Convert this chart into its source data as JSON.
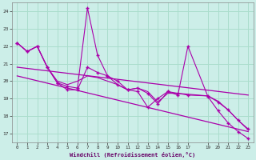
{
  "xlabel": "Windchill (Refroidissement éolien,°C)",
  "background_color": "#cceee8",
  "grid_color": "#aaddcc",
  "line_color": "#aa00aa",
  "xlim": [
    -0.5,
    23.5
  ],
  "ylim": [
    16.5,
    24.5
  ],
  "yticks": [
    17,
    18,
    19,
    20,
    21,
    22,
    23,
    24
  ],
  "xticks": [
    0,
    1,
    2,
    3,
    4,
    5,
    6,
    7,
    8,
    9,
    10,
    11,
    12,
    13,
    14,
    15,
    16,
    17,
    19,
    20,
    21,
    22,
    23
  ],
  "series1_x": [
    0,
    1,
    2,
    3,
    4,
    5,
    6,
    7,
    8,
    9,
    10,
    11,
    12,
    13,
    14,
    15,
    16,
    17,
    19,
    20,
    21,
    22,
    23
  ],
  "series1_y": [
    22.2,
    21.7,
    22.0,
    20.8,
    19.9,
    19.7,
    19.6,
    24.2,
    21.5,
    20.3,
    20.0,
    19.5,
    19.6,
    19.3,
    18.7,
    19.4,
    19.3,
    19.2,
    19.15,
    18.8,
    18.35,
    17.75,
    17.25
  ],
  "series2_x": [
    0,
    1,
    2,
    3,
    4,
    5,
    6,
    7,
    8,
    9,
    10,
    11,
    12,
    13,
    14,
    15,
    16,
    17,
    19,
    20,
    21,
    22,
    23
  ],
  "series2_y": [
    22.2,
    21.7,
    22.0,
    20.8,
    20.0,
    19.8,
    20.0,
    20.3,
    20.2,
    20.0,
    19.8,
    19.5,
    19.6,
    19.4,
    18.8,
    19.3,
    19.3,
    19.25,
    19.15,
    18.85,
    18.35,
    17.75,
    17.2
  ],
  "main_x": [
    0,
    1,
    2,
    3,
    4,
    5,
    6,
    7,
    8,
    9,
    10,
    11,
    12,
    13,
    14,
    15,
    16,
    17,
    19,
    20,
    21,
    22,
    23
  ],
  "main_y": [
    22.2,
    21.7,
    22.0,
    20.8,
    19.9,
    19.5,
    19.5,
    20.8,
    20.5,
    20.3,
    19.8,
    19.5,
    19.4,
    18.5,
    19.0,
    19.4,
    19.2,
    22.0,
    19.1,
    18.3,
    17.6,
    17.1,
    16.7
  ],
  "trend1_x": [
    0,
    23
  ],
  "trend1_y": [
    20.8,
    19.2
  ],
  "trend2_x": [
    0,
    23
  ],
  "trend2_y": [
    20.3,
    17.1
  ]
}
